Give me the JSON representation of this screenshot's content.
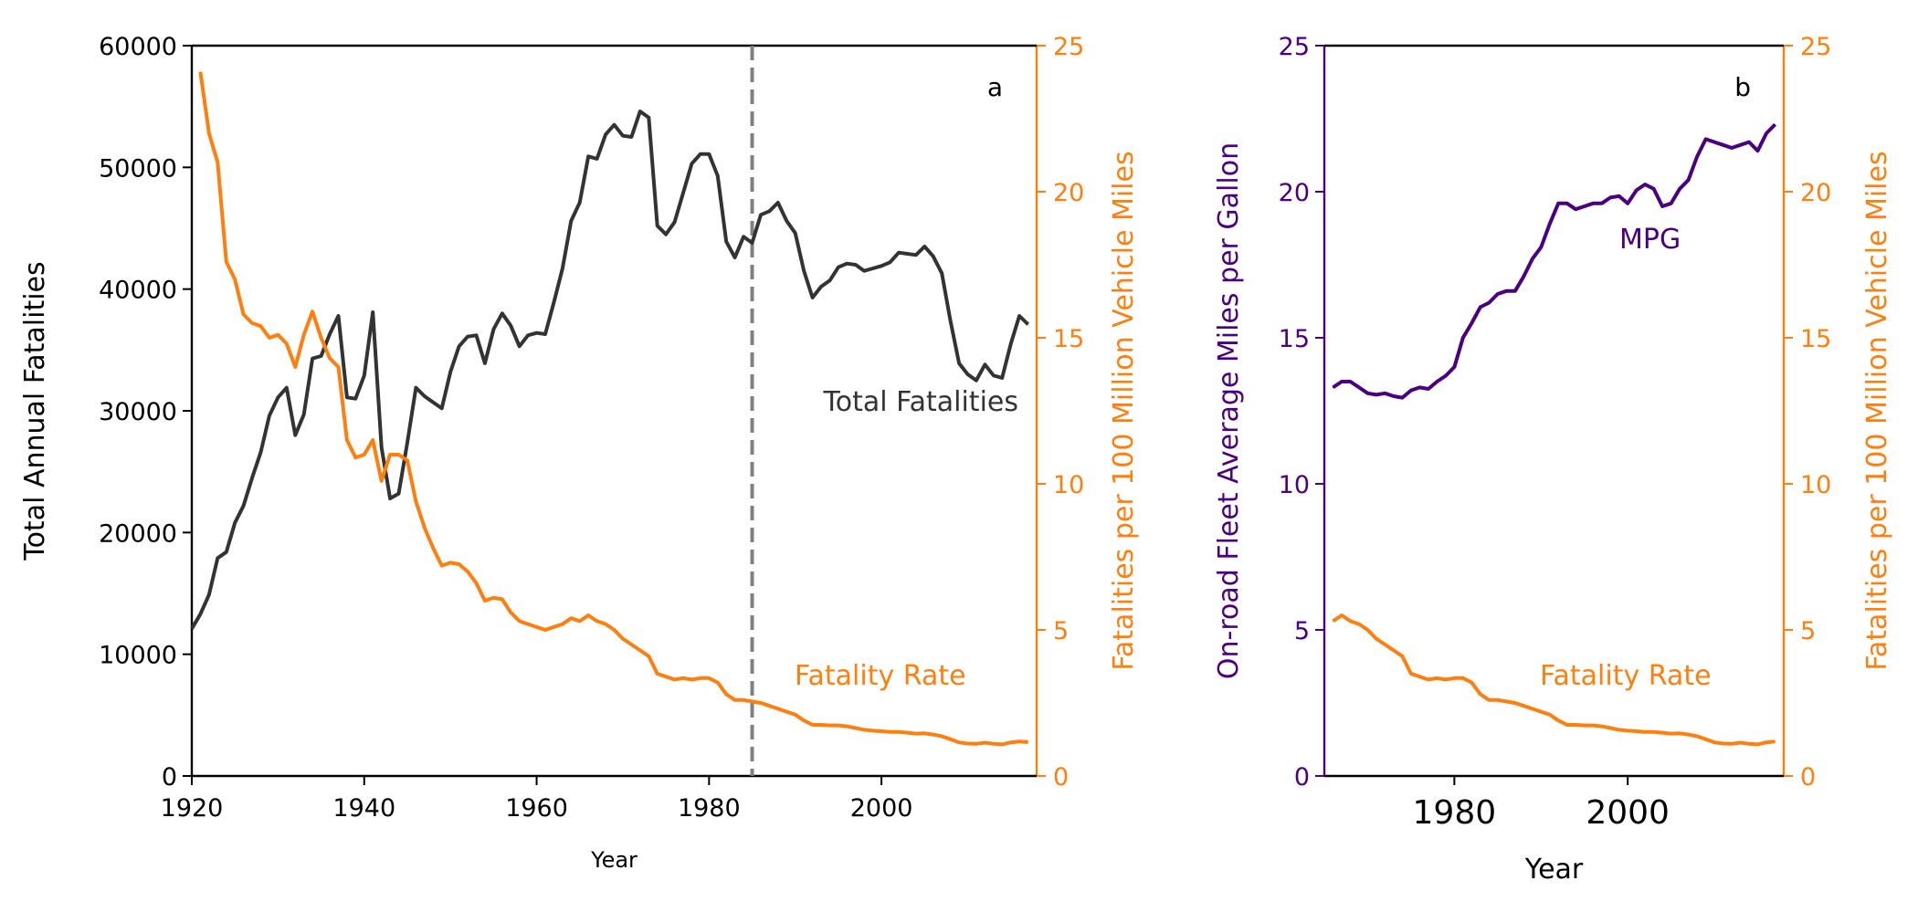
{
  "colors": {
    "total": "#333333",
    "rate": "#ff7f0e",
    "mpg": "#4b0082",
    "axis": "#000000",
    "vline": "#808080"
  },
  "chart_data": [
    {
      "panel": "a",
      "type": "line",
      "xlabel": "Year",
      "ylabel": "Total Annual Fatalities",
      "y2label": "Fatalities per 100 Million Vehicle Miles",
      "xlim": [
        1920,
        2018
      ],
      "ylim": [
        0,
        60000
      ],
      "y2lim": [
        0,
        25
      ],
      "xticks": [
        1920,
        1940,
        1960,
        1980,
        2000
      ],
      "yticks": [
        0,
        10000,
        20000,
        30000,
        40000,
        50000,
        60000
      ],
      "y2ticks": [
        0,
        5,
        10,
        15,
        20,
        25
      ],
      "vline_x": 1985,
      "series": [
        {
          "name": "Total Fatalities",
          "axis": "left",
          "x": [
            1920,
            1921,
            1922,
            1923,
            1924,
            1925,
            1926,
            1927,
            1928,
            1929,
            1930,
            1931,
            1932,
            1933,
            1934,
            1935,
            1936,
            1937,
            1938,
            1939,
            1940,
            1941,
            1942,
            1943,
            1944,
            1945,
            1946,
            1947,
            1948,
            1949,
            1950,
            1951,
            1952,
            1953,
            1954,
            1955,
            1956,
            1957,
            1958,
            1959,
            1960,
            1961,
            1962,
            1963,
            1964,
            1965,
            1966,
            1967,
            1968,
            1969,
            1970,
            1971,
            1972,
            1973,
            1974,
            1975,
            1976,
            1977,
            1978,
            1979,
            1980,
            1981,
            1982,
            1983,
            1984,
            1985,
            1986,
            1987,
            1988,
            1989,
            1990,
            1991,
            1992,
            1993,
            1994,
            1995,
            1996,
            1997,
            1998,
            1999,
            2000,
            2001,
            2002,
            2003,
            2004,
            2005,
            2006,
            2007,
            2008,
            2009,
            2010,
            2011,
            2012,
            2013,
            2014,
            2015,
            2016,
            2017
          ],
          "values": [
            12100,
            13300,
            14900,
            17900,
            18400,
            20800,
            22200,
            24500,
            26600,
            29600,
            31100,
            31900,
            28000,
            29700,
            34300,
            34500,
            36300,
            37800,
            31100,
            31000,
            32900,
            38100,
            27000,
            22800,
            23200,
            27400,
            31900,
            31200,
            30700,
            30200,
            33200,
            35300,
            36100,
            36200,
            33900,
            36700,
            38000,
            37000,
            35300,
            36200,
            36400,
            36300,
            38900,
            41700,
            45600,
            47100,
            50900,
            50700,
            52700,
            53500,
            52600,
            52500,
            54600,
            54100,
            45200,
            44500,
            45500,
            47900,
            50300,
            51100,
            51100,
            49300,
            43900,
            42600,
            44300,
            43800,
            46100,
            46400,
            47100,
            45600,
            44600,
            41500,
            39300,
            40200,
            40700,
            41800,
            42100,
            42000,
            41500,
            41700,
            41900,
            42200,
            43000,
            42900,
            42800,
            43500,
            42700,
            41300,
            37400,
            33900,
            33000,
            32500,
            33800,
            32900,
            32700,
            35500,
            37800,
            37100
          ]
        },
        {
          "name": "Fatality Rate",
          "axis": "right",
          "x": [
            1921,
            1922,
            1923,
            1924,
            1925,
            1926,
            1927,
            1928,
            1929,
            1930,
            1931,
            1932,
            1933,
            1934,
            1935,
            1936,
            1937,
            1938,
            1939,
            1940,
            1941,
            1942,
            1943,
            1944,
            1945,
            1946,
            1947,
            1948,
            1949,
            1950,
            1951,
            1952,
            1953,
            1954,
            1955,
            1956,
            1957,
            1958,
            1959,
            1960,
            1961,
            1962,
            1963,
            1964,
            1965,
            1966,
            1967,
            1968,
            1969,
            1970,
            1971,
            1972,
            1973,
            1974,
            1975,
            1976,
            1977,
            1978,
            1979,
            1980,
            1981,
            1982,
            1983,
            1984,
            1985,
            1986,
            1987,
            1988,
            1989,
            1990,
            1991,
            1992,
            1993,
            1994,
            1995,
            1996,
            1997,
            1998,
            1999,
            2000,
            2001,
            2002,
            2003,
            2004,
            2005,
            2006,
            2007,
            2008,
            2009,
            2010,
            2011,
            2012,
            2013,
            2014,
            2015,
            2016,
            2017
          ],
          "values": [
            24.1,
            22.0,
            21.0,
            17.6,
            17.0,
            15.8,
            15.5,
            15.4,
            15.0,
            15.1,
            14.8,
            14.0,
            15.1,
            15.9,
            15.0,
            14.3,
            14.0,
            11.5,
            10.9,
            11.0,
            11.5,
            10.1,
            11.0,
            11.0,
            10.8,
            9.4,
            8.5,
            7.8,
            7.2,
            7.3,
            7.25,
            7.0,
            6.6,
            6.0,
            6.1,
            6.05,
            5.6,
            5.3,
            5.2,
            5.1,
            5.0,
            5.1,
            5.2,
            5.4,
            5.3,
            5.5,
            5.3,
            5.2,
            5.0,
            4.7,
            4.5,
            4.3,
            4.1,
            3.5,
            3.4,
            3.3,
            3.35,
            3.3,
            3.35,
            3.35,
            3.2,
            2.8,
            2.6,
            2.6,
            2.55,
            2.5,
            2.4,
            2.3,
            2.2,
            2.1,
            1.9,
            1.75,
            1.75,
            1.73,
            1.73,
            1.7,
            1.64,
            1.58,
            1.55,
            1.53,
            1.51,
            1.51,
            1.48,
            1.45,
            1.46,
            1.42,
            1.36,
            1.26,
            1.15,
            1.11,
            1.1,
            1.14,
            1.1,
            1.08,
            1.15,
            1.18,
            1.16
          ]
        }
      ],
      "annotations": [
        {
          "text": "a",
          "color": "#000000"
        },
        {
          "text": "Total Fatalities",
          "color": "#333333"
        },
        {
          "text": "Fatality Rate",
          "color": "#ff7f0e"
        }
      ]
    },
    {
      "panel": "b",
      "type": "line",
      "xlabel": "Year",
      "ylabel": "On-road Fleet Average Miles per Gallon",
      "y2label": "Fatalities per 100 Million Vehicle Miles",
      "xlim": [
        1965,
        2018
      ],
      "ylim": [
        0,
        25
      ],
      "y2lim": [
        0,
        25
      ],
      "xticks": [
        1980,
        2000
      ],
      "yticks": [
        0,
        5,
        10,
        15,
        20,
        25
      ],
      "y2ticks": [
        0,
        5,
        10,
        15,
        20,
        25
      ],
      "series": [
        {
          "name": "MPG",
          "axis": "left",
          "x": [
            1966,
            1967,
            1968,
            1969,
            1970,
            1971,
            1972,
            1973,
            1974,
            1975,
            1976,
            1977,
            1978,
            1979,
            1980,
            1981,
            1982,
            1983,
            1984,
            1985,
            1986,
            1987,
            1988,
            1989,
            1990,
            1991,
            1992,
            1993,
            1994,
            1995,
            1996,
            1997,
            1998,
            1999,
            2000,
            2001,
            2002,
            2003,
            2004,
            2005,
            2006,
            2007,
            2008,
            2009,
            2010,
            2011,
            2012,
            2013,
            2014,
            2015,
            2016,
            2017
          ],
          "values": [
            13.3,
            13.5,
            13.5,
            13.3,
            13.1,
            13.05,
            13.1,
            13.0,
            12.95,
            13.2,
            13.3,
            13.25,
            13.5,
            13.7,
            14.0,
            15.0,
            15.5,
            16.05,
            16.2,
            16.5,
            16.6,
            16.6,
            17.1,
            17.7,
            18.1,
            18.9,
            19.6,
            19.6,
            19.4,
            19.5,
            19.6,
            19.6,
            19.8,
            19.85,
            19.6,
            20.05,
            20.25,
            20.1,
            19.5,
            19.6,
            20.1,
            20.4,
            21.2,
            21.8,
            21.7,
            21.6,
            21.5,
            21.6,
            21.7,
            21.4,
            22.0,
            22.3
          ]
        },
        {
          "name": "Fatality Rate",
          "axis": "right",
          "x": [
            1966,
            1967,
            1968,
            1969,
            1970,
            1971,
            1972,
            1973,
            1974,
            1975,
            1976,
            1977,
            1978,
            1979,
            1980,
            1981,
            1982,
            1983,
            1984,
            1985,
            1986,
            1987,
            1988,
            1989,
            1990,
            1991,
            1992,
            1993,
            1994,
            1995,
            1996,
            1997,
            1998,
            1999,
            2000,
            2001,
            2002,
            2003,
            2004,
            2005,
            2006,
            2007,
            2008,
            2009,
            2010,
            2011,
            2012,
            2013,
            2014,
            2015,
            2016,
            2017
          ],
          "values": [
            5.3,
            5.5,
            5.3,
            5.2,
            5.0,
            4.7,
            4.5,
            4.3,
            4.1,
            3.5,
            3.4,
            3.3,
            3.35,
            3.3,
            3.35,
            3.35,
            3.2,
            2.8,
            2.6,
            2.6,
            2.55,
            2.5,
            2.4,
            2.3,
            2.2,
            2.1,
            1.9,
            1.75,
            1.75,
            1.73,
            1.73,
            1.7,
            1.64,
            1.58,
            1.55,
            1.53,
            1.51,
            1.51,
            1.48,
            1.45,
            1.46,
            1.42,
            1.36,
            1.26,
            1.15,
            1.11,
            1.1,
            1.14,
            1.1,
            1.08,
            1.15,
            1.18
          ]
        }
      ],
      "annotations": [
        {
          "text": "b",
          "color": "#000000"
        },
        {
          "text": "MPG",
          "color": "#4b0082"
        },
        {
          "text": "Fatality Rate",
          "color": "#ff7f0e"
        }
      ]
    }
  ]
}
